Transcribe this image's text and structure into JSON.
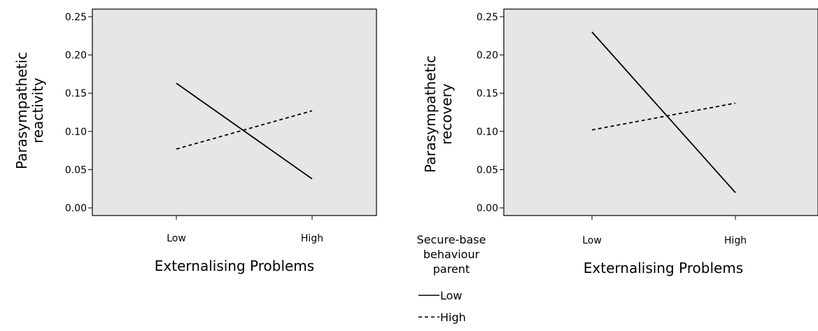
{
  "colors": {
    "panel_background": "#e6e6e6",
    "axis": "#000000",
    "line": "#000000"
  },
  "legend": {
    "title_lines": [
      "Secure-base",
      "behaviour",
      "parent"
    ],
    "items": [
      {
        "label": "Low",
        "style": "solid"
      },
      {
        "label": "High",
        "style": "dashed"
      }
    ]
  },
  "chart_data": [
    {
      "type": "line",
      "xlabel": "Externalising Problems",
      "ylabel_lines": [
        "Parasympathetic",
        "reactivity"
      ],
      "categories": [
        "Low",
        "High"
      ],
      "ylim": [
        -0.01,
        0.26
      ],
      "yticks": [
        "0.00",
        "0.05",
        "0.10",
        "0.15",
        "0.20",
        "0.25"
      ],
      "grid": false,
      "series": [
        {
          "name": "Low",
          "style": "solid",
          "values": [
            0.163,
            0.038
          ]
        },
        {
          "name": "High",
          "style": "dashed",
          "values": [
            0.077,
            0.127
          ]
        }
      ]
    },
    {
      "type": "line",
      "xlabel": "Externalising Problems",
      "ylabel_lines": [
        "Parasympathetic",
        "recovery"
      ],
      "categories": [
        "Low",
        "High"
      ],
      "ylim": [
        -0.01,
        0.26
      ],
      "yticks": [
        "0.00",
        "0.05",
        "0.10",
        "0.15",
        "0.20",
        "0.25"
      ],
      "grid": false,
      "series": [
        {
          "name": "Low",
          "style": "solid",
          "values": [
            0.23,
            0.02
          ]
        },
        {
          "name": "High",
          "style": "dashed",
          "values": [
            0.102,
            0.137
          ]
        }
      ]
    }
  ]
}
